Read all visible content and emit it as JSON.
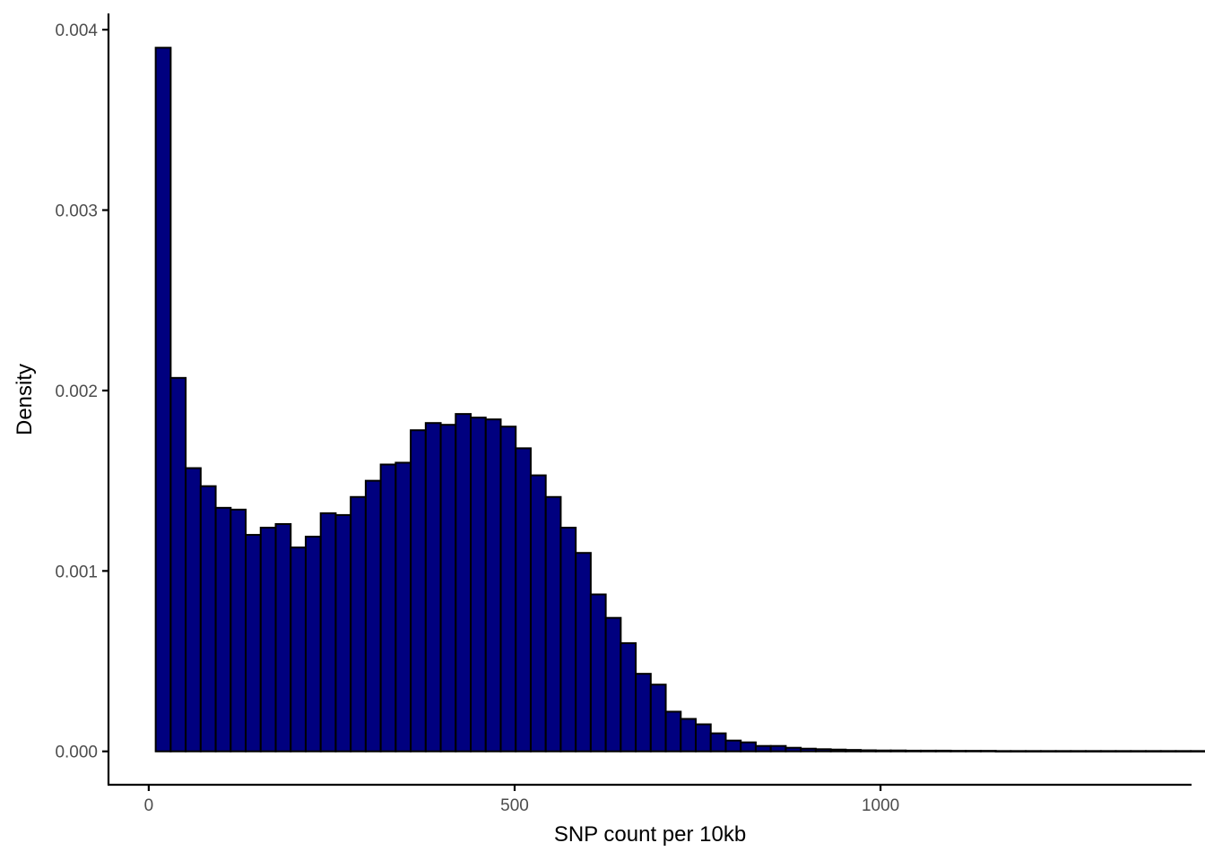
{
  "chart_data": {
    "type": "bar",
    "title": "",
    "xlabel": "SNP count per 10kb",
    "ylabel": "Density",
    "xlim": [
      -55,
      1425
    ],
    "ylim": [
      -0.000185,
      0.00409
    ],
    "x_ticks": [
      0,
      500,
      1000
    ],
    "x_tick_labels": [
      "0",
      "500",
      "1000"
    ],
    "y_ticks": [
      0,
      0.001,
      0.002,
      0.003,
      0.004
    ],
    "y_tick_labels": [
      "0.000",
      "0.001",
      "0.002",
      "0.003",
      "0.004"
    ],
    "grid": false,
    "legend": "none",
    "bin_width": 20.5,
    "bin_start": 9.5,
    "bar_color": "#00007F",
    "bar_outline": "#000000",
    "values": [
      0.0039,
      0.00207,
      0.00157,
      0.00147,
      0.00135,
      0.00134,
      0.0012,
      0.00124,
      0.00126,
      0.00113,
      0.00119,
      0.00132,
      0.00131,
      0.00141,
      0.0015,
      0.00159,
      0.0016,
      0.00178,
      0.00182,
      0.00181,
      0.00187,
      0.00185,
      0.00184,
      0.0018,
      0.00168,
      0.00153,
      0.00141,
      0.00124,
      0.0011,
      0.00087,
      0.00074,
      0.0006,
      0.00043,
      0.00037,
      0.00022,
      0.00018,
      0.00015,
      0.0001,
      6e-05,
      5e-05,
      3e-05,
      3e-05,
      2e-05,
      1.5e-05,
      1.2e-05,
      1e-05,
      8e-06,
      6e-06,
      5e-06,
      5e-06,
      4e-06,
      4e-06,
      4e-06,
      3e-06,
      3e-06,
      3e-06,
      2e-06,
      2e-06,
      2e-06,
      2e-06,
      2e-06,
      2e-06,
      2e-06,
      2e-06,
      2e-06,
      2e-06,
      2e-06,
      2e-06,
      2e-06,
      2e-06,
      2e-06,
      2e-06,
      2e-06,
      2e-06,
      2e-06,
      2e-06,
      2e-06,
      2e-06,
      2e-06,
      2e-06,
      2e-06,
      2e-06,
      2e-06,
      2e-06,
      2e-06,
      2e-06,
      2e-06,
      2e-06,
      2e-06,
      2e-06,
      2e-06,
      2e-06,
      2e-06,
      2e-06,
      2e-06,
      2e-06,
      2e-06,
      2e-06,
      2e-06,
      2e-06,
      2e-06,
      2e-06,
      2e-06,
      2e-06,
      2e-06,
      2e-06,
      2e-06,
      2e-06,
      2e-06,
      2e-06,
      2e-06,
      2e-06,
      2e-06,
      2e-06,
      2e-06,
      2e-06,
      2e-06,
      2e-06,
      2e-06,
      2e-06,
      2e-06,
      2e-06,
      2e-06,
      2e-06,
      2e-06,
      2e-06,
      2e-06,
      2e-06,
      2e-06,
      2e-06,
      2e-06,
      2e-06,
      2e-06,
      2e-06,
      2e-06,
      2e-06,
      2e-06,
      2e-06,
      2e-06,
      2e-06,
      2e-06,
      2e-06,
      2e-06,
      2e-06,
      2e-06,
      2e-06,
      2e-06,
      2e-06
    ]
  }
}
